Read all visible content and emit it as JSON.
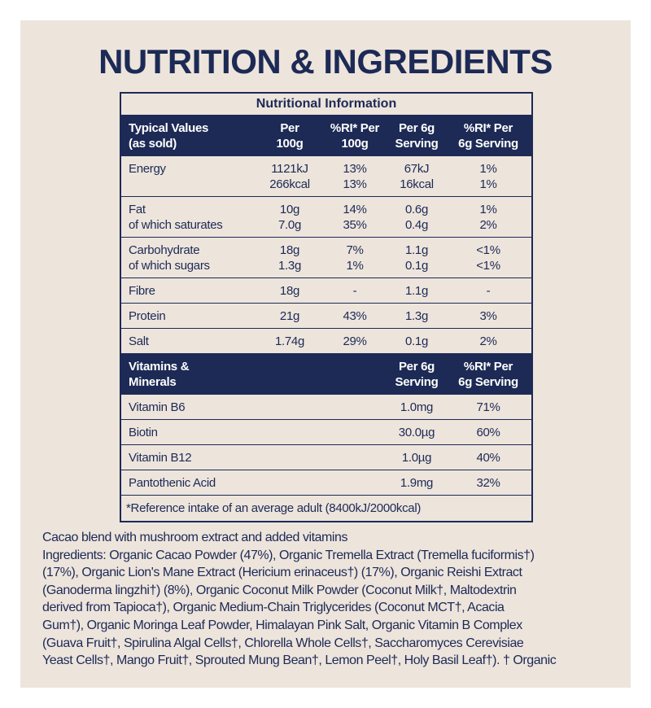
{
  "header": {
    "title": "NUTRITION & INGREDIENTS"
  },
  "table": {
    "title": "Nutritional Information",
    "columns": [
      [
        "Typical Values",
        "(as sold)"
      ],
      [
        "Per",
        "100g"
      ],
      [
        "%RI* Per",
        "100g"
      ],
      [
        "Per 6g",
        "Serving"
      ],
      [
        "%RI* Per",
        "6g Serving"
      ]
    ],
    "rows": [
      {
        "label": [
          "Energy"
        ],
        "cells": [
          [
            "1121kJ",
            "266kcal"
          ],
          [
            "13%",
            "13%"
          ],
          [
            "67kJ",
            "16kcal"
          ],
          [
            "1%",
            "1%"
          ]
        ]
      },
      {
        "label": [
          "Fat",
          "of which saturates"
        ],
        "cells": [
          [
            "10g",
            "7.0g"
          ],
          [
            "14%",
            "35%"
          ],
          [
            "0.6g",
            "0.4g"
          ],
          [
            "1%",
            "2%"
          ]
        ]
      },
      {
        "label": [
          "Carbohydrate",
          "of which sugars"
        ],
        "cells": [
          [
            "18g",
            "1.3g"
          ],
          [
            "7%",
            "1%"
          ],
          [
            "1.1g",
            "0.1g"
          ],
          [
            "<1%",
            "<1%"
          ]
        ]
      },
      {
        "label": [
          "Fibre"
        ],
        "cells": [
          [
            "18g"
          ],
          [
            "-"
          ],
          [
            "1.1g"
          ],
          [
            "-"
          ]
        ]
      },
      {
        "label": [
          "Protein"
        ],
        "cells": [
          [
            "21g"
          ],
          [
            "43%"
          ],
          [
            "1.3g"
          ],
          [
            "3%"
          ]
        ]
      },
      {
        "label": [
          "Salt"
        ],
        "cells": [
          [
            "1.74g"
          ],
          [
            "29%"
          ],
          [
            "0.1g"
          ],
          [
            "2%"
          ]
        ]
      }
    ],
    "vitamins_columns": [
      [
        "Vitamins &",
        "Minerals"
      ],
      [
        "Per 6g",
        "Serving"
      ],
      [
        "%RI* Per",
        "6g Serving"
      ]
    ],
    "vitamins_rows": [
      {
        "label": [
          "Vitamin B6"
        ],
        "cells": [
          [
            "1.0mg"
          ],
          [
            "71%"
          ]
        ]
      },
      {
        "label": [
          "Biotin"
        ],
        "cells": [
          [
            "30.0µg"
          ],
          [
            "60%"
          ]
        ]
      },
      {
        "label": [
          "Vitamin B12"
        ],
        "cells": [
          [
            "1.0µg"
          ],
          [
            "40%"
          ]
        ]
      },
      {
        "label": [
          "Pantothenic Acid"
        ],
        "cells": [
          [
            "1.9mg"
          ],
          [
            "32%"
          ]
        ]
      }
    ],
    "footnote": "*Reference intake of an average adult (8400kJ/2000kcal)"
  },
  "ingredients": {
    "lines": [
      "Cacao blend with mushroom extract and added vitamins",
      "Ingredients:  Organic Cacao Powder (47%), Organic Tremella Extract (Tremella fuciformis†)",
      "(17%), Organic Lion's Mane Extract (Hericium erinaceus†) (17%), Organic Reishi Extract",
      "(Ganoderma lingzhi†) (8%), Organic Coconut Milk Powder (Coconut Milk†, Maltodextrin",
      "derived from Tapioca†), Organic Medium-Chain Triglycerides (Coconut MCT†, Acacia",
      "Gum†), Organic Moringa Leaf Powder, Himalayan Pink Salt, Organic Vitamin B Complex",
      "(Guava Fruit†, Spirulina Algal Cells†, Chlorella Whole Cells†, Saccharomyces Cerevisiae",
      "Yeast Cells†, Mango Fruit†, Sprouted Mung Bean†, Lemon Peel†, Holy Basil Leaf†). † Organic"
    ]
  }
}
